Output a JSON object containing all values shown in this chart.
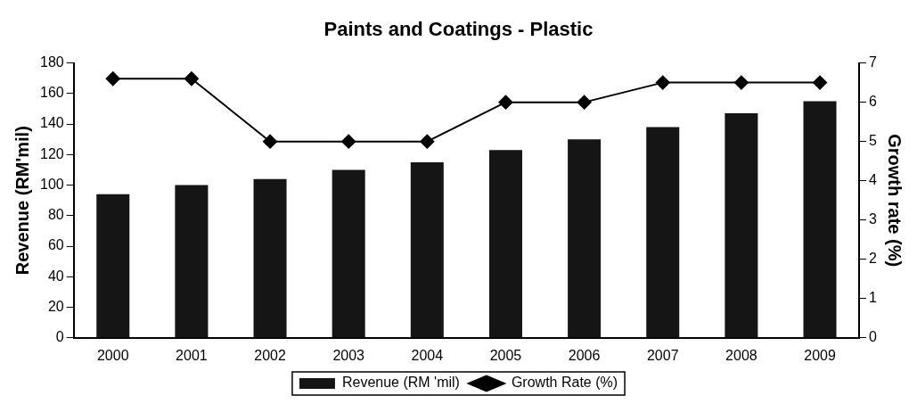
{
  "chart_data": {
    "type": "bar",
    "title": "Paints and Coatings - Plastic",
    "ylabel": "Revenue (RM'mil)",
    "y2label": "Growth rate (%)",
    "categories": [
      "2000",
      "2001",
      "2002",
      "2003",
      "2004",
      "2005",
      "2006",
      "2007",
      "2008",
      "2009"
    ],
    "series": [
      {
        "name": "Revenue (RM 'mil)",
        "color": "#151515",
        "values": [
          94,
          100,
          104,
          110,
          115,
          123,
          130,
          138,
          147,
          155
        ]
      },
      {
        "name": "Growth Rate (%)",
        "type": "line",
        "axis": "y2",
        "color": "#000000",
        "marker": "diamond",
        "values": [
          6.6,
          6.6,
          5.0,
          5.0,
          5.0,
          6.0,
          6.0,
          6.5,
          6.5,
          6.5
        ]
      }
    ],
    "ylim": [
      0,
      180
    ],
    "yticks": [
      0,
      20,
      40,
      60,
      80,
      100,
      120,
      140,
      160,
      180
    ],
    "y2lim": [
      0,
      7
    ],
    "y2ticks": [
      0,
      1,
      2,
      3,
      4,
      5,
      6,
      7
    ],
    "grid": false,
    "legend": "bottom"
  }
}
